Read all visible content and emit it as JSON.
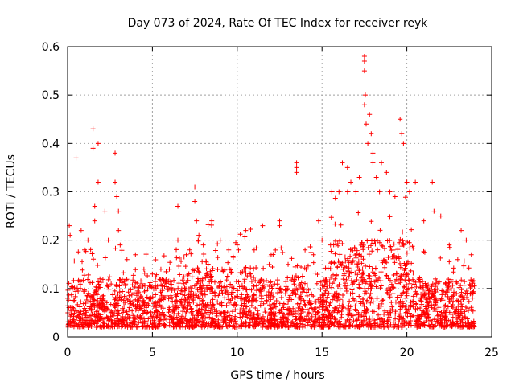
{
  "chart_data": {
    "type": "scatter",
    "title": "Day 073 of 2024, Rate Of TEC Index for receiver reyk",
    "xlabel": "GPS time / hours",
    "ylabel": "ROTI / TECUs",
    "xlim": [
      0,
      25
    ],
    "ylim": [
      0,
      0.6
    ],
    "xticks": [
      0,
      5,
      10,
      15,
      20,
      25
    ],
    "xtick_labels": [
      "0",
      "5",
      "10",
      "15",
      "20",
      "25"
    ],
    "yticks": [
      0,
      0.1,
      0.2,
      0.3,
      0.4,
      0.5,
      0.6
    ],
    "ytick_labels": [
      "0",
      "0.1",
      "0.2",
      "0.3",
      "0.4",
      "0.5",
      "0.6"
    ],
    "grid": true,
    "marker": "plus",
    "series": [
      {
        "name": "ROTI",
        "color": "#ff0000",
        "points": [
          [
            0.0,
            0.08
          ],
          [
            0.1,
            0.23
          ],
          [
            0.15,
            0.21
          ],
          [
            0.5,
            0.37
          ],
          [
            0.8,
            0.22
          ],
          [
            1.0,
            0.18
          ],
          [
            1.2,
            0.2
          ],
          [
            1.5,
            0.43
          ],
          [
            1.5,
            0.39
          ],
          [
            1.6,
            0.27
          ],
          [
            1.6,
            0.24
          ],
          [
            1.8,
            0.4
          ],
          [
            1.8,
            0.32
          ],
          [
            2.2,
            0.26
          ],
          [
            2.4,
            0.2
          ],
          [
            2.8,
            0.38
          ],
          [
            2.8,
            0.32
          ],
          [
            2.9,
            0.29
          ],
          [
            3.0,
            0.26
          ],
          [
            3.0,
            0.22
          ],
          [
            3.1,
            0.19
          ],
          [
            3.5,
            0.16
          ],
          [
            4.0,
            0.17
          ],
          [
            4.5,
            0.14
          ],
          [
            5.0,
            0.13
          ],
          [
            5.5,
            0.14
          ],
          [
            6.0,
            0.14
          ],
          [
            6.5,
            0.2
          ],
          [
            6.5,
            0.27
          ],
          [
            7.0,
            0.17
          ],
          [
            7.5,
            0.31
          ],
          [
            7.5,
            0.28
          ],
          [
            7.6,
            0.24
          ],
          [
            7.7,
            0.2
          ],
          [
            8.0,
            0.19
          ],
          [
            8.5,
            0.24
          ],
          [
            9.0,
            0.2
          ],
          [
            9.5,
            0.18
          ],
          [
            10.0,
            0.19
          ],
          [
            10.5,
            0.22
          ],
          [
            11.0,
            0.18
          ],
          [
            11.5,
            0.23
          ],
          [
            12.0,
            0.17
          ],
          [
            12.5,
            0.24
          ],
          [
            12.5,
            0.23
          ],
          [
            13.0,
            0.15
          ],
          [
            13.5,
            0.36
          ],
          [
            13.5,
            0.35
          ],
          [
            13.5,
            0.34
          ],
          [
            14.0,
            0.18
          ],
          [
            14.5,
            0.17
          ],
          [
            14.8,
            0.24
          ],
          [
            15.0,
            0.2
          ],
          [
            15.5,
            0.19
          ],
          [
            16.0,
            0.3
          ],
          [
            16.2,
            0.36
          ],
          [
            16.5,
            0.35
          ],
          [
            16.7,
            0.32
          ],
          [
            17.0,
            0.3
          ],
          [
            17.2,
            0.33
          ],
          [
            17.5,
            0.58
          ],
          [
            17.5,
            0.57
          ],
          [
            17.5,
            0.55
          ],
          [
            17.55,
            0.5
          ],
          [
            17.5,
            0.48
          ],
          [
            17.6,
            0.44
          ],
          [
            17.7,
            0.4
          ],
          [
            17.8,
            0.46
          ],
          [
            17.9,
            0.42
          ],
          [
            18.0,
            0.38
          ],
          [
            18.0,
            0.36
          ],
          [
            18.2,
            0.33
          ],
          [
            18.5,
            0.36
          ],
          [
            18.8,
            0.34
          ],
          [
            19.0,
            0.3
          ],
          [
            19.3,
            0.29
          ],
          [
            19.6,
            0.45
          ],
          [
            19.7,
            0.42
          ],
          [
            19.8,
            0.4
          ],
          [
            20.0,
            0.32
          ],
          [
            20.5,
            0.32
          ],
          [
            21.0,
            0.24
          ],
          [
            21.5,
            0.32
          ],
          [
            21.6,
            0.26
          ],
          [
            22.0,
            0.25
          ],
          [
            22.5,
            0.19
          ],
          [
            23.0,
            0.16
          ],
          [
            23.2,
            0.22
          ],
          [
            23.5,
            0.2
          ],
          [
            23.8,
            0.17
          ]
        ]
      }
    ],
    "baseline_band": {
      "description_values": "dense background activity",
      "typical_min": 0.02,
      "typical_max": 0.12
    }
  }
}
